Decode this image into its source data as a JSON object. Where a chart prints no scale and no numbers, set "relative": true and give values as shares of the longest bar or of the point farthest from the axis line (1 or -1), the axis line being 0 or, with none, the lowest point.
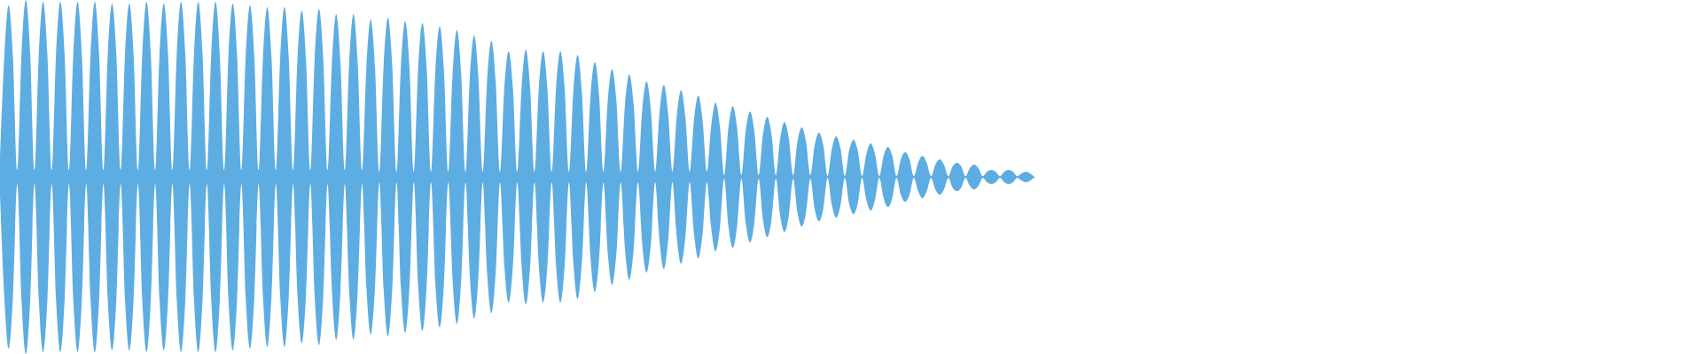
{
  "chart_data": {
    "type": "area",
    "relative": true,
    "categories": [
      null,
      null,
      null,
      null,
      null,
      null,
      null,
      null,
      null,
      null,
      null,
      null,
      null,
      null,
      null,
      null,
      null,
      null,
      null,
      null,
      null,
      null,
      null,
      null,
      null,
      null,
      null,
      null,
      null,
      null,
      null,
      null,
      null,
      null,
      null,
      null,
      null,
      null,
      null,
      null,
      null,
      null,
      null,
      null,
      null,
      null,
      null,
      null,
      null,
      null,
      null,
      null,
      null,
      null,
      null,
      null,
      null,
      null,
      null,
      null,
      null,
      null,
      null,
      null,
      null,
      null,
      null,
      null,
      null,
      null,
      null,
      null,
      null,
      null,
      null,
      null,
      null,
      null,
      null,
      null,
      null,
      null,
      null,
      null,
      null,
      null,
      null,
      null,
      null,
      null,
      null,
      null,
      null,
      null,
      null,
      null,
      null,
      null,
      null,
      null,
      null,
      null,
      null,
      null,
      null,
      null,
      null,
      null,
      null,
      null,
      null,
      null,
      null,
      null,
      null,
      null,
      null,
      null,
      null,
      null,
      null,
      null,
      null,
      null,
      null,
      null,
      null,
      null,
      null,
      null,
      null,
      null,
      null,
      null,
      null,
      null,
      null,
      null,
      null,
      null,
      null,
      null,
      null,
      null,
      null,
      null,
      null,
      null,
      null,
      null,
      null,
      null,
      null,
      null,
      null,
      null,
      null,
      null,
      null,
      null,
      null,
      null,
      null,
      null,
      null,
      null,
      null,
      null,
      null,
      null,
      null,
      null,
      null,
      null,
      null,
      null,
      null,
      null,
      null,
      null,
      null,
      null,
      null,
      null,
      null,
      null,
      null,
      null,
      null,
      null,
      null,
      null,
      null,
      null,
      null,
      null,
      null,
      null,
      null,
      null,
      null,
      null,
      null,
      null,
      null,
      null,
      null,
      null,
      null,
      null,
      null,
      null,
      null,
      null,
      null,
      null,
      null,
      null,
      null,
      null,
      null,
      null,
      null,
      null,
      null,
      null,
      null,
      null,
      null,
      null,
      null,
      null,
      null,
      null,
      null,
      null,
      null,
      null,
      null,
      null,
      null
    ],
    "series": [
      {
        "color": "#5dade2",
        "values": [
          0.1,
          0.68,
          0.97,
          0.68,
          0.04,
          0.7,
          1,
          0.7,
          0.04,
          0.69,
          0.99,
          0.69,
          0.04,
          0.69,
          0.99,
          0.69,
          0.04,
          0.69,
          0.99,
          0.69,
          0.04,
          0.69,
          0.99,
          0.69,
          0.04,
          0.69,
          0.98,
          0.69,
          0.04,
          0.69,
          0.98,
          0.69,
          0.04,
          0.69,
          0.99,
          0.69,
          0.04,
          0.69,
          0.98,
          0.69,
          0.04,
          0.69,
          0.99,
          0.69,
          0.04,
          0.69,
          0.99,
          0.69,
          0.04,
          0.69,
          0.99,
          0.69,
          0.04,
          0.69,
          0.98,
          0.69,
          0.04,
          0.68,
          0.97,
          0.68,
          0.04,
          0.67,
          0.96,
          0.67,
          0.04,
          0.67,
          0.96,
          0.67,
          0.04,
          0.66,
          0.94,
          0.66,
          0.04,
          0.67,
          0.95,
          0.67,
          0.04,
          0.64,
          0.92,
          0.64,
          0.04,
          0.64,
          0.92,
          0.64,
          0.04,
          0.62,
          0.89,
          0.62,
          0.03,
          0.63,
          0.9,
          0.63,
          0.03,
          0.62,
          0.88,
          0.62,
          0.03,
          0.61,
          0.87,
          0.61,
          0.03,
          0.6,
          0.85,
          0.6,
          0.03,
          0.58,
          0.83,
          0.58,
          0.03,
          0.56,
          0.8,
          0.56,
          0.03,
          0.54,
          0.77,
          0.54,
          0.03,
          0.5,
          0.71,
          0.5,
          0.03,
          0.5,
          0.72,
          0.5,
          0.03,
          0.5,
          0.71,
          0.5,
          0.03,
          0.5,
          0.71,
          0.5,
          0.03,
          0.48,
          0.69,
          0.48,
          0.03,
          0.46,
          0.65,
          0.46,
          0.03,
          0.43,
          0.61,
          0.43,
          0.03,
          0.41,
          0.58,
          0.41,
          0.03,
          0.38,
          0.54,
          0.38,
          0.03,
          0.36,
          0.52,
          0.36,
          0.03,
          0.34,
          0.49,
          0.34,
          0.03,
          0.32,
          0.46,
          0.32,
          0.03,
          0.29,
          0.42,
          0.29,
          0.01,
          0.28,
          0.4,
          0.28,
          0.01,
          0.26,
          0.37,
          0.26,
          0.01,
          0.24,
          0.34,
          0.24,
          0.01,
          0.22,
          0.31,
          0.22,
          0.01,
          0.2,
          0.28,
          0.2,
          0.01,
          0.18,
          0.25,
          0.18,
          0.005,
          0.16,
          0.23,
          0.16,
          0.005,
          0.15,
          0.21,
          0.15,
          0.005,
          0.13,
          0.19,
          0.13,
          0.005,
          0.12,
          0.17,
          0.12,
          0.005,
          0.1,
          0.14,
          0.1,
          0.005,
          0.08,
          0.12,
          0.08,
          0.005,
          0.07,
          0.1,
          0.07,
          0.005,
          0.06,
          0.08,
          0.06,
          0.005,
          0.05,
          0.07,
          0.05,
          0.005,
          0.03,
          0.04,
          0.03,
          0.005,
          0.03,
          0.04,
          0.03,
          0.005,
          0.02,
          0.03,
          0.02,
          0
        ]
      },
      {
        "color": "#5dade2",
        "values": [
          -0.1,
          -0.68,
          -0.97,
          -0.68,
          -0.04,
          -0.7,
          -1,
          -0.7,
          -0.04,
          -0.69,
          -0.99,
          -0.69,
          -0.04,
          -0.69,
          -0.99,
          -0.69,
          -0.04,
          -0.69,
          -0.99,
          -0.69,
          -0.04,
          -0.69,
          -0.99,
          -0.69,
          -0.04,
          -0.69,
          -0.98,
          -0.69,
          -0.04,
          -0.69,
          -0.98,
          -0.69,
          -0.04,
          -0.69,
          -0.99,
          -0.69,
          -0.04,
          -0.69,
          -0.98,
          -0.69,
          -0.04,
          -0.69,
          -0.99,
          -0.69,
          -0.04,
          -0.69,
          -0.99,
          -0.69,
          -0.04,
          -0.69,
          -0.99,
          -0.69,
          -0.04,
          -0.69,
          -0.98,
          -0.69,
          -0.04,
          -0.68,
          -0.97,
          -0.68,
          -0.04,
          -0.67,
          -0.96,
          -0.67,
          -0.04,
          -0.67,
          -0.96,
          -0.67,
          -0.04,
          -0.66,
          -0.94,
          -0.66,
          -0.04,
          -0.67,
          -0.95,
          -0.67,
          -0.04,
          -0.64,
          -0.92,
          -0.64,
          -0.04,
          -0.64,
          -0.92,
          -0.64,
          -0.04,
          -0.62,
          -0.89,
          -0.62,
          -0.03,
          -0.63,
          -0.9,
          -0.63,
          -0.03,
          -0.62,
          -0.88,
          -0.62,
          -0.03,
          -0.61,
          -0.87,
          -0.61,
          -0.03,
          -0.6,
          -0.85,
          -0.6,
          -0.03,
          -0.58,
          -0.83,
          -0.58,
          -0.03,
          -0.56,
          -0.8,
          -0.56,
          -0.03,
          -0.54,
          -0.77,
          -0.54,
          -0.03,
          -0.5,
          -0.71,
          -0.5,
          -0.03,
          -0.5,
          -0.72,
          -0.5,
          -0.03,
          -0.5,
          -0.71,
          -0.5,
          -0.03,
          -0.5,
          -0.71,
          -0.5,
          -0.03,
          -0.48,
          -0.69,
          -0.48,
          -0.03,
          -0.46,
          -0.65,
          -0.46,
          -0.03,
          -0.43,
          -0.61,
          -0.43,
          -0.03,
          -0.41,
          -0.58,
          -0.41,
          -0.03,
          -0.38,
          -0.54,
          -0.38,
          -0.03,
          -0.36,
          -0.52,
          -0.36,
          -0.03,
          -0.34,
          -0.49,
          -0.34,
          -0.03,
          -0.32,
          -0.46,
          -0.32,
          -0.03,
          -0.29,
          -0.42,
          -0.29,
          -0.01,
          -0.28,
          -0.4,
          -0.28,
          -0.01,
          -0.26,
          -0.37,
          -0.26,
          -0.01,
          -0.24,
          -0.34,
          -0.24,
          -0.01,
          -0.22,
          -0.31,
          -0.22,
          -0.01,
          -0.2,
          -0.28,
          -0.2,
          -0.01,
          -0.18,
          -0.25,
          -0.18,
          -0.005,
          -0.16,
          -0.23,
          -0.16,
          -0.005,
          -0.15,
          -0.21,
          -0.15,
          -0.005,
          -0.13,
          -0.19,
          -0.13,
          -0.005,
          -0.12,
          -0.17,
          -0.12,
          -0.005,
          -0.1,
          -0.14,
          -0.1,
          -0.005,
          -0.08,
          -0.12,
          -0.08,
          -0.005,
          -0.07,
          -0.1,
          -0.07,
          -0.005,
          -0.06,
          -0.08,
          -0.06,
          -0.005,
          -0.05,
          -0.07,
          -0.05,
          -0.005,
          -0.03,
          -0.04,
          -0.03,
          -0.005,
          -0.03,
          -0.04,
          -0.03,
          -0.005,
          -0.02,
          -0.03,
          -0.02,
          0
        ]
      }
    ]
  }
}
